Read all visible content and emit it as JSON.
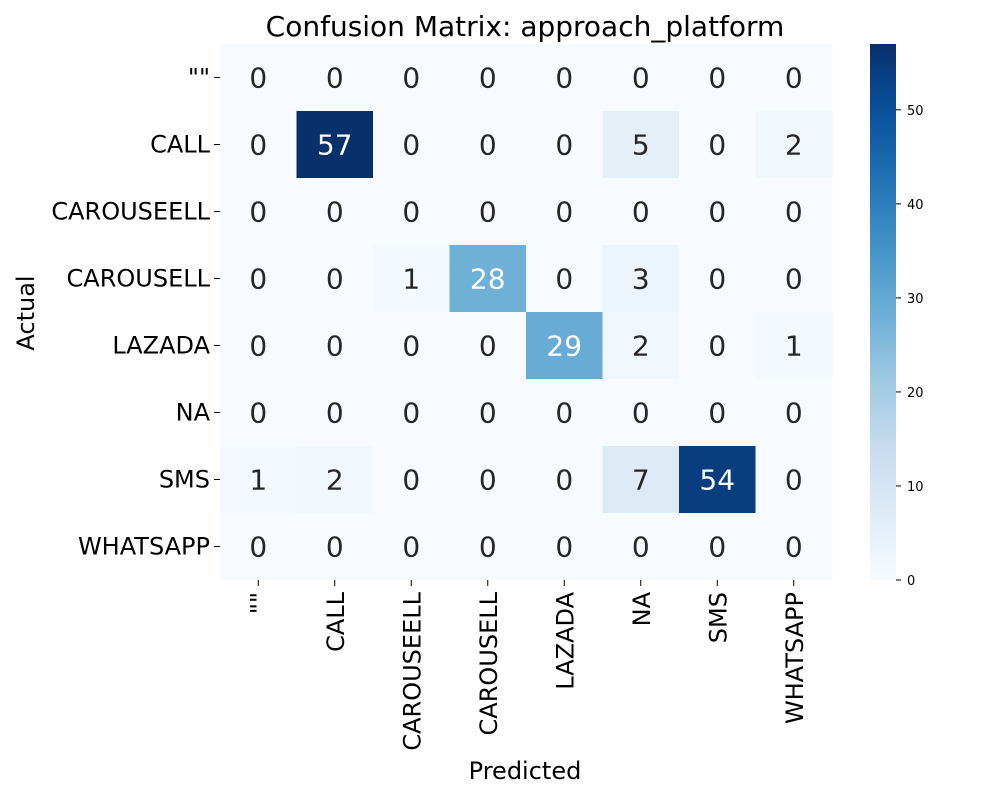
{
  "chart_data": {
    "type": "heatmap",
    "title": "Confusion Matrix: approach_platform",
    "xlabel": "Predicted",
    "ylabel": "Actual",
    "row_labels": [
      "\"\"",
      "CALL",
      "CAROUSEELL",
      "CAROUSELL",
      "LAZADA",
      "NA",
      "SMS",
      "WHATSAPP"
    ],
    "col_labels": [
      "\"\"",
      "CALL",
      "CAROUSEELL",
      "CAROUSELL",
      "LAZADA",
      "NA",
      "SMS",
      "WHATSAPP"
    ],
    "values": [
      [
        0,
        0,
        0,
        0,
        0,
        0,
        0,
        0
      ],
      [
        0,
        57,
        0,
        0,
        0,
        5,
        0,
        2
      ],
      [
        0,
        0,
        0,
        0,
        0,
        0,
        0,
        0
      ],
      [
        0,
        0,
        1,
        28,
        0,
        3,
        0,
        0
      ],
      [
        0,
        0,
        0,
        0,
        29,
        2,
        0,
        1
      ],
      [
        0,
        0,
        0,
        0,
        0,
        0,
        0,
        0
      ],
      [
        1,
        2,
        0,
        0,
        0,
        7,
        54,
        0
      ],
      [
        0,
        0,
        0,
        0,
        0,
        0,
        0,
        0
      ]
    ],
    "colorbar": {
      "min": 0,
      "max": 57,
      "ticks": [
        0,
        10,
        20,
        30,
        40,
        50
      ]
    },
    "colormap": "Blues",
    "colors": {
      "low": "#f7fbff",
      "high": "#08306b",
      "text_dark": "#262626",
      "text_light": "#ffffff"
    }
  }
}
